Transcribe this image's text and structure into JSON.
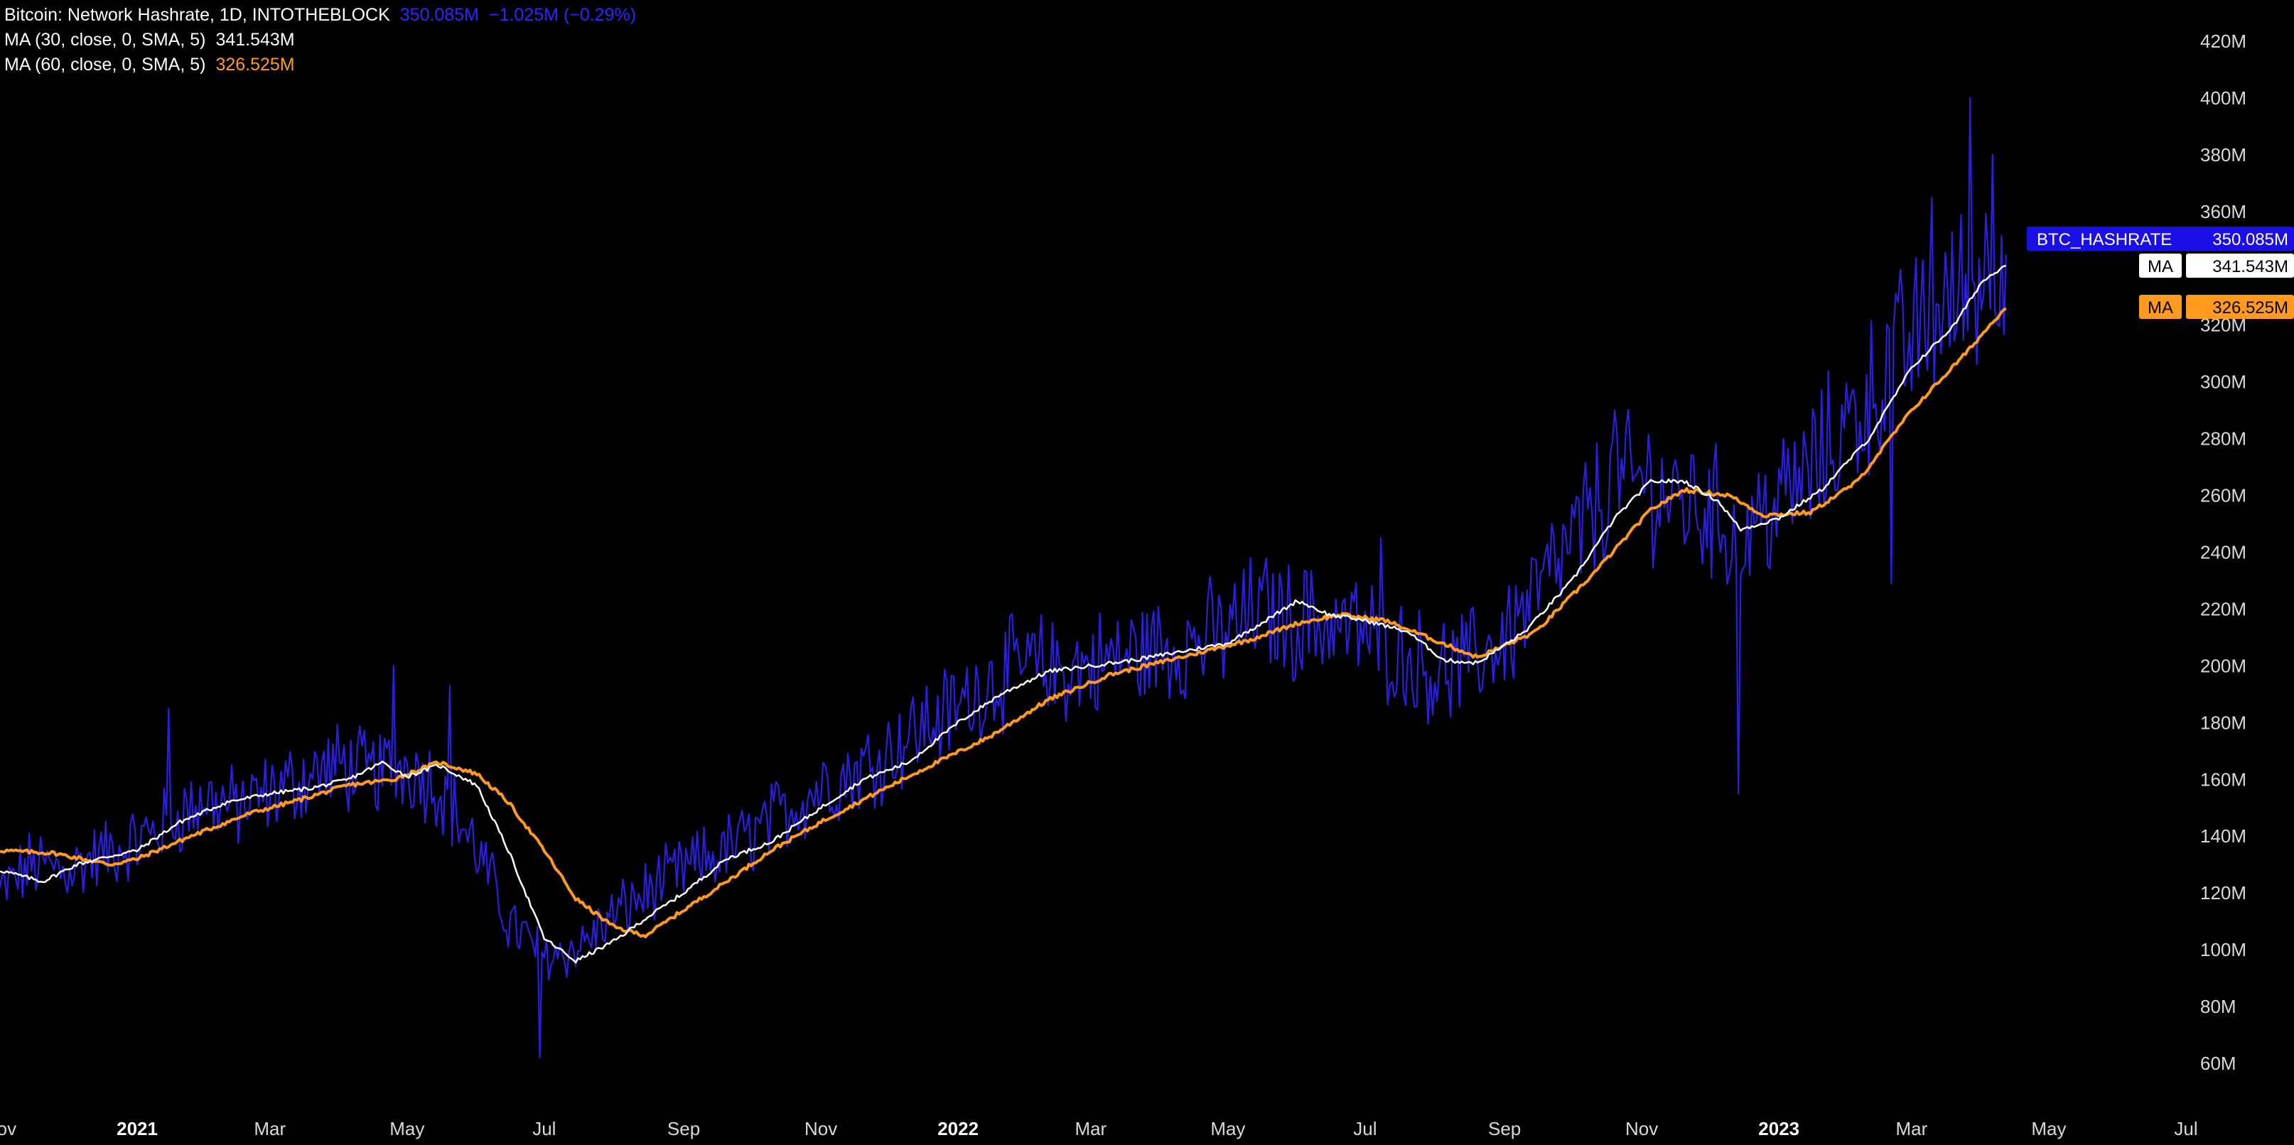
{
  "legend": {
    "main": {
      "title": "Bitcoin: Network Hashrate, 1D, INTOTHEBLOCK",
      "value": "350.085M",
      "change": "−1.025M (−0.29%)"
    },
    "ma30": {
      "label": "MA (30, close, 0, SMA, 5)",
      "value": "341.543M"
    },
    "ma60": {
      "label": "MA (60, close, 0, SMA, 5)",
      "value": "326.525M"
    }
  },
  "price_tags": [
    {
      "name": "BTC_HASHRATE",
      "value": "350.085M",
      "bg": "#1a0fe6",
      "fg": "#ffffff"
    },
    {
      "name": "MA",
      "value": "341.543M",
      "bg": "#ffffff",
      "fg": "#000000"
    },
    {
      "name": "MA",
      "value": "326.525M",
      "bg": "#ff9a1e",
      "fg": "#000000"
    }
  ],
  "colors": {
    "background": "#000000",
    "hashrate": "#2a1fe0",
    "ma30": "#ffffff",
    "ma60": "#ff9a1e",
    "axis_text": "#d9d9d9"
  },
  "chart_data": {
    "type": "line",
    "title": "Bitcoin: Network Hashrate, 1D, INTOTHEBLOCK",
    "x_range": [
      "2020-11-01",
      "2023-07-01"
    ],
    "ylim": [
      50,
      430
    ],
    "y_unit": "M",
    "y_ticks": [
      "60M",
      "80M",
      "100M",
      "120M",
      "140M",
      "160M",
      "180M",
      "200M",
      "220M",
      "240M",
      "260M",
      "280M",
      "300M",
      "320M",
      "340M",
      "360M",
      "380M",
      "400M",
      "420M"
    ],
    "x_ticks": [
      {
        "label": "Nov",
        "date": "2020-11-01",
        "bold": false
      },
      {
        "label": "2021",
        "date": "2021-01-01",
        "bold": true
      },
      {
        "label": "Mar",
        "date": "2021-03-01",
        "bold": false
      },
      {
        "label": "May",
        "date": "2021-05-01",
        "bold": false
      },
      {
        "label": "Jul",
        "date": "2021-07-01",
        "bold": false
      },
      {
        "label": "Sep",
        "date": "2021-09-01",
        "bold": false
      },
      {
        "label": "Nov",
        "date": "2021-11-01",
        "bold": false
      },
      {
        "label": "2022",
        "date": "2022-01-01",
        "bold": true
      },
      {
        "label": "Mar",
        "date": "2022-03-01",
        "bold": false
      },
      {
        "label": "May",
        "date": "2022-05-01",
        "bold": false
      },
      {
        "label": "Jul",
        "date": "2022-07-01",
        "bold": false
      },
      {
        "label": "Sep",
        "date": "2022-09-01",
        "bold": false
      },
      {
        "label": "Nov",
        "date": "2022-11-01",
        "bold": false
      },
      {
        "label": "2023",
        "date": "2023-01-01",
        "bold": true
      },
      {
        "label": "Mar",
        "date": "2023-03-01",
        "bold": false
      },
      {
        "label": "May",
        "date": "2023-05-01",
        "bold": false
      },
      {
        "label": "Jul",
        "date": "2023-07-01",
        "bold": false
      }
    ],
    "series": [
      {
        "name": "BTC_HASHRATE",
        "style": "noisy",
        "trend": [
          [
            "2020-11-01",
            120
          ],
          [
            "2020-11-15",
            130
          ],
          [
            "2020-12-01",
            128
          ],
          [
            "2020-12-15",
            133
          ],
          [
            "2021-01-01",
            138
          ],
          [
            "2021-01-15",
            145
          ],
          [
            "2021-02-01",
            153
          ],
          [
            "2021-02-15",
            150
          ],
          [
            "2021-03-01",
            155
          ],
          [
            "2021-03-15",
            160
          ],
          [
            "2021-04-01",
            165
          ],
          [
            "2021-04-15",
            162
          ],
          [
            "2021-05-01",
            165
          ],
          [
            "2021-05-15",
            158
          ],
          [
            "2021-06-01",
            135
          ],
          [
            "2021-06-15",
            110
          ],
          [
            "2021-07-01",
            98
          ],
          [
            "2021-07-15",
            100
          ],
          [
            "2021-08-01",
            112
          ],
          [
            "2021-08-15",
            120
          ],
          [
            "2021-09-01",
            128
          ],
          [
            "2021-09-15",
            133
          ],
          [
            "2021-10-01",
            140
          ],
          [
            "2021-10-15",
            148
          ],
          [
            "2021-11-01",
            158
          ],
          [
            "2021-11-15",
            162
          ],
          [
            "2021-12-01",
            170
          ],
          [
            "2021-12-15",
            178
          ],
          [
            "2022-01-01",
            185
          ],
          [
            "2022-01-15",
            195
          ],
          [
            "2022-02-01",
            200
          ],
          [
            "2022-02-15",
            198
          ],
          [
            "2022-03-01",
            200
          ],
          [
            "2022-03-15",
            203
          ],
          [
            "2022-04-01",
            206
          ],
          [
            "2022-04-15",
            208
          ],
          [
            "2022-05-01",
            212
          ],
          [
            "2022-05-15",
            220
          ],
          [
            "2022-06-01",
            215
          ],
          [
            "2022-06-15",
            215
          ],
          [
            "2022-07-01",
            212
          ],
          [
            "2022-07-15",
            205
          ],
          [
            "2022-08-01",
            198
          ],
          [
            "2022-08-15",
            200
          ],
          [
            "2022-09-01",
            210
          ],
          [
            "2022-09-15",
            225
          ],
          [
            "2022-10-01",
            242
          ],
          [
            "2022-10-15",
            260
          ],
          [
            "2022-11-01",
            266
          ],
          [
            "2022-11-15",
            258
          ],
          [
            "2022-12-01",
            255
          ],
          [
            "2022-12-15",
            245
          ],
          [
            "2023-01-01",
            258
          ],
          [
            "2023-01-15",
            268
          ],
          [
            "2023-02-01",
            285
          ],
          [
            "2023-02-15",
            300
          ],
          [
            "2023-03-01",
            315
          ],
          [
            "2023-03-15",
            325
          ],
          [
            "2023-04-01",
            338
          ],
          [
            "2023-04-12",
            350
          ]
        ],
        "spikes": [
          [
            "2021-06-29",
            62
          ],
          [
            "2022-12-14",
            155
          ],
          [
            "2023-02-20",
            229
          ],
          [
            "2023-03-27",
            400
          ],
          [
            "2023-04-06",
            380
          ],
          [
            "2022-06-05",
            233
          ],
          [
            "2021-01-15",
            185
          ],
          [
            "2021-04-25",
            200
          ],
          [
            "2021-05-20",
            193
          ],
          [
            "2022-07-08",
            245
          ],
          [
            "2022-10-20",
            290
          ],
          [
            "2023-03-10",
            365
          ]
        ]
      },
      {
        "name": "MA (30, close, 0, SMA, 5)",
        "points": [
          [
            "2020-11-01",
            128
          ],
          [
            "2020-11-20",
            124
          ],
          [
            "2020-12-05",
            130
          ],
          [
            "2020-12-20",
            133
          ],
          [
            "2021-01-01",
            135
          ],
          [
            "2021-01-20",
            145
          ],
          [
            "2021-02-10",
            152
          ],
          [
            "2021-03-01",
            155
          ],
          [
            "2021-03-20",
            157
          ],
          [
            "2021-04-05",
            160
          ],
          [
            "2021-04-20",
            166
          ],
          [
            "2021-05-01",
            161
          ],
          [
            "2021-05-15",
            165
          ],
          [
            "2021-06-01",
            158
          ],
          [
            "2021-06-15",
            135
          ],
          [
            "2021-07-01",
            104
          ],
          [
            "2021-07-15",
            96
          ],
          [
            "2021-08-01",
            103
          ],
          [
            "2021-08-15",
            111
          ],
          [
            "2021-09-01",
            120
          ],
          [
            "2021-09-20",
            132
          ],
          [
            "2021-10-10",
            138
          ],
          [
            "2021-11-01",
            150
          ],
          [
            "2021-11-20",
            160
          ],
          [
            "2021-12-10",
            166
          ],
          [
            "2022-01-01",
            180
          ],
          [
            "2022-01-20",
            190
          ],
          [
            "2022-02-10",
            198
          ],
          [
            "2022-03-01",
            200
          ],
          [
            "2022-03-20",
            202
          ],
          [
            "2022-04-10",
            205
          ],
          [
            "2022-05-01",
            208
          ],
          [
            "2022-05-20",
            217
          ],
          [
            "2022-06-01",
            223
          ],
          [
            "2022-06-15",
            218
          ],
          [
            "2022-07-01",
            216
          ],
          [
            "2022-07-20",
            212
          ],
          [
            "2022-08-05",
            202
          ],
          [
            "2022-08-20",
            201
          ],
          [
            "2022-09-10",
            212
          ],
          [
            "2022-10-01",
            230
          ],
          [
            "2022-10-20",
            252
          ],
          [
            "2022-11-05",
            265
          ],
          [
            "2022-11-20",
            265
          ],
          [
            "2022-12-05",
            258
          ],
          [
            "2022-12-15",
            248
          ],
          [
            "2023-01-01",
            252
          ],
          [
            "2023-01-20",
            262
          ],
          [
            "2023-02-10",
            280
          ],
          [
            "2023-03-01",
            305
          ],
          [
            "2023-03-20",
            320
          ],
          [
            "2023-04-01",
            335
          ],
          [
            "2023-04-12",
            341.543
          ]
        ]
      },
      {
        "name": "MA (60, close, 0, SMA, 5)",
        "points": [
          [
            "2020-11-01",
            135
          ],
          [
            "2020-11-25",
            134
          ],
          [
            "2020-12-20",
            130
          ],
          [
            "2021-01-01",
            132
          ],
          [
            "2021-01-25",
            140
          ],
          [
            "2021-02-20",
            148
          ],
          [
            "2021-03-15",
            153
          ],
          [
            "2021-04-05",
            158
          ],
          [
            "2021-04-25",
            160
          ],
          [
            "2021-05-15",
            166
          ],
          [
            "2021-06-01",
            162
          ],
          [
            "2021-06-15",
            152
          ],
          [
            "2021-07-01",
            135
          ],
          [
            "2021-07-15",
            118
          ],
          [
            "2021-08-01",
            108
          ],
          [
            "2021-08-15",
            105
          ],
          [
            "2021-09-01",
            114
          ],
          [
            "2021-09-20",
            124
          ],
          [
            "2021-10-10",
            135
          ],
          [
            "2021-11-01",
            145
          ],
          [
            "2021-11-25",
            155
          ],
          [
            "2021-12-20",
            165
          ],
          [
            "2022-01-15",
            175
          ],
          [
            "2022-02-10",
            188
          ],
          [
            "2022-03-10",
            197
          ],
          [
            "2022-04-10",
            203
          ],
          [
            "2022-05-10",
            209
          ],
          [
            "2022-06-01",
            215
          ],
          [
            "2022-06-20",
            218
          ],
          [
            "2022-07-10",
            216
          ],
          [
            "2022-08-01",
            209
          ],
          [
            "2022-08-20",
            203
          ],
          [
            "2022-09-15",
            212
          ],
          [
            "2022-10-10",
            232
          ],
          [
            "2022-11-05",
            255
          ],
          [
            "2022-11-20",
            262
          ],
          [
            "2022-12-10",
            260
          ],
          [
            "2022-12-25",
            253
          ],
          [
            "2023-01-15",
            254
          ],
          [
            "2023-02-05",
            265
          ],
          [
            "2023-03-01",
            290
          ],
          [
            "2023-03-25",
            310
          ],
          [
            "2023-04-12",
            326.525
          ]
        ]
      }
    ]
  }
}
